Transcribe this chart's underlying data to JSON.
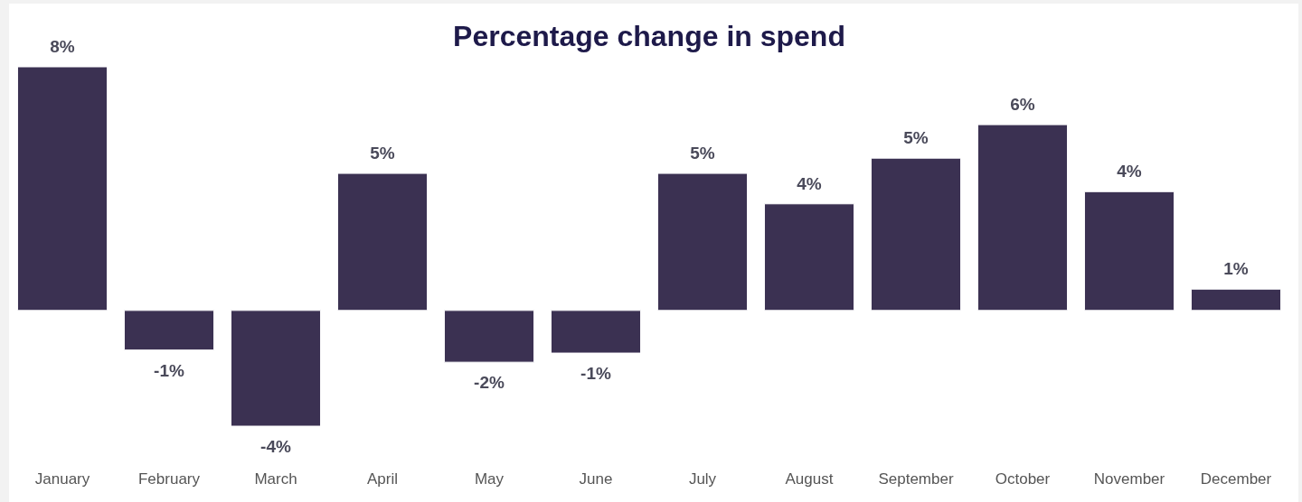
{
  "chart_data": {
    "type": "bar",
    "title": "Percentage change in spend",
    "categories": [
      "January",
      "February",
      "March",
      "April",
      "May",
      "June",
      "July",
      "August",
      "September",
      "October",
      "November",
      "December"
    ],
    "values": [
      8,
      -1.3,
      -3.8,
      4.5,
      -1.7,
      -1.4,
      4.5,
      3.5,
      5.0,
      6.1,
      3.9,
      0.7
    ],
    "value_labels": [
      "8%",
      "-1%",
      "-4%",
      "5%",
      "-2%",
      "-1%",
      "5%",
      "4%",
      "5%",
      "6%",
      "4%",
      "1%"
    ],
    "color": "#3b3152"
  }
}
